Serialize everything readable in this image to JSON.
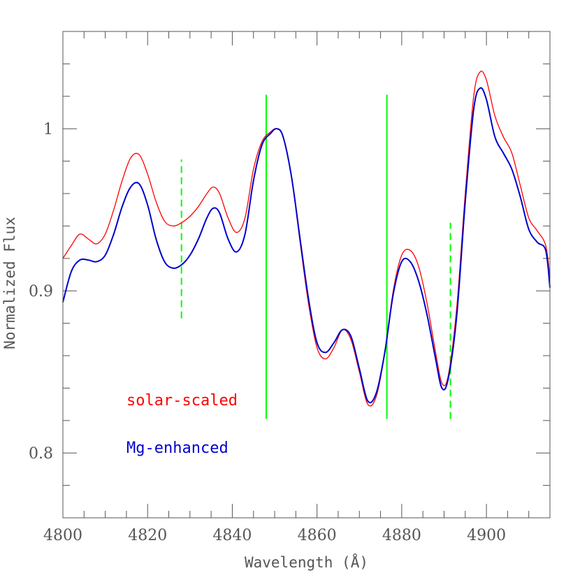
{
  "chart_data": {
    "type": "line",
    "title": "",
    "xlabel": "Wavelength (Å)",
    "ylabel": "Normalized Flux",
    "xlim": [
      4800,
      4915
    ],
    "ylim": [
      0.76,
      1.06
    ],
    "x_major_ticks": [
      4800,
      4820,
      4840,
      4860,
      4880,
      4900
    ],
    "x_minor_step": 5,
    "y_major_ticks": [
      0.8,
      0.9,
      1.0
    ],
    "y_tick_labels": [
      "0.8",
      "0.9",
      "1"
    ],
    "y_minor_step": 0.02,
    "grid": false,
    "legend_position": "bottom-left",
    "series": [
      {
        "name": "solar-scaled",
        "color": "#ff0000",
        "x": [
          4800,
          4802,
          4804,
          4806,
          4808,
          4810,
          4812,
          4814,
          4816,
          4818,
          4820,
          4822,
          4824,
          4826,
          4828,
          4830,
          4832,
          4834,
          4835.5,
          4837,
          4839,
          4841,
          4843,
          4845,
          4847,
          4849,
          4850.5,
          4852,
          4854,
          4856,
          4858,
          4860,
          4862,
          4864,
          4866,
          4868,
          4870,
          4872,
          4874,
          4876,
          4878,
          4880,
          4882,
          4884,
          4886,
          4888,
          4889.5,
          4891,
          4893,
          4895,
          4897,
          4898.5,
          4900,
          4902,
          4904,
          4906,
          4908,
          4910,
          4912,
          4914,
          4915
        ],
        "y": [
          0.92,
          0.928,
          0.935,
          0.932,
          0.929,
          0.935,
          0.95,
          0.968,
          0.982,
          0.984,
          0.972,
          0.955,
          0.943,
          0.94,
          0.942,
          0.946,
          0.952,
          0.96,
          0.964,
          0.96,
          0.945,
          0.936,
          0.945,
          0.975,
          0.992,
          0.998,
          1.0,
          0.995,
          0.97,
          0.93,
          0.892,
          0.865,
          0.858,
          0.865,
          0.876,
          0.87,
          0.85,
          0.83,
          0.835,
          0.862,
          0.9,
          0.922,
          0.925,
          0.915,
          0.892,
          0.862,
          0.843,
          0.848,
          0.89,
          0.96,
          1.02,
          1.035,
          1.03,
          1.008,
          0.995,
          0.985,
          0.965,
          0.945,
          0.937,
          0.928,
          0.908
        ]
      },
      {
        "name": "Mg-enhanced",
        "color": "#0000cc",
        "x": [
          4800,
          4802,
          4804,
          4806,
          4808,
          4810,
          4812,
          4814,
          4816,
          4818,
          4820,
          4822,
          4824,
          4826,
          4828,
          4830,
          4832,
          4834,
          4835.5,
          4837,
          4839,
          4841,
          4843,
          4845,
          4847,
          4849,
          4850.5,
          4852,
          4854,
          4856,
          4858,
          4860,
          4862,
          4864,
          4866,
          4868,
          4870,
          4872,
          4874,
          4876,
          4878,
          4880,
          4882,
          4884,
          4886,
          4888,
          4889.5,
          4891,
          4893,
          4895,
          4897,
          4898.5,
          4900,
          4902,
          4904,
          4906,
          4908,
          4910,
          4912,
          4914,
          4915
        ],
        "y": [
          0.893,
          0.912,
          0.919,
          0.919,
          0.918,
          0.922,
          0.935,
          0.952,
          0.964,
          0.966,
          0.953,
          0.932,
          0.918,
          0.914,
          0.916,
          0.922,
          0.932,
          0.945,
          0.951,
          0.948,
          0.932,
          0.924,
          0.935,
          0.968,
          0.99,
          0.997,
          1.0,
          0.995,
          0.97,
          0.932,
          0.895,
          0.868,
          0.862,
          0.868,
          0.876,
          0.872,
          0.852,
          0.832,
          0.837,
          0.862,
          0.898,
          0.918,
          0.918,
          0.906,
          0.885,
          0.858,
          0.84,
          0.846,
          0.885,
          0.955,
          1.012,
          1.025,
          1.018,
          0.995,
          0.985,
          0.975,
          0.958,
          0.938,
          0.93,
          0.925,
          0.902
        ]
      }
    ],
    "markers": [
      {
        "x": 4828,
        "y_range": [
          0.883,
          0.981
        ],
        "style": "dashed",
        "color": "#00ff00"
      },
      {
        "x": 4848,
        "y_range": [
          0.821,
          1.021
        ],
        "style": "solid",
        "color": "#00ff00"
      },
      {
        "x": 4876.5,
        "y_range": [
          0.821,
          1.021
        ],
        "style": "solid",
        "color": "#00ff00"
      },
      {
        "x": 4891.5,
        "y_range": [
          0.821,
          0.942
        ],
        "style": "dashed",
        "color": "#00ff00"
      }
    ],
    "legend": [
      {
        "label": "solar-scaled",
        "color": "#ff0000"
      },
      {
        "label": "Mg-enhanced",
        "color": "#0000cc"
      }
    ]
  }
}
